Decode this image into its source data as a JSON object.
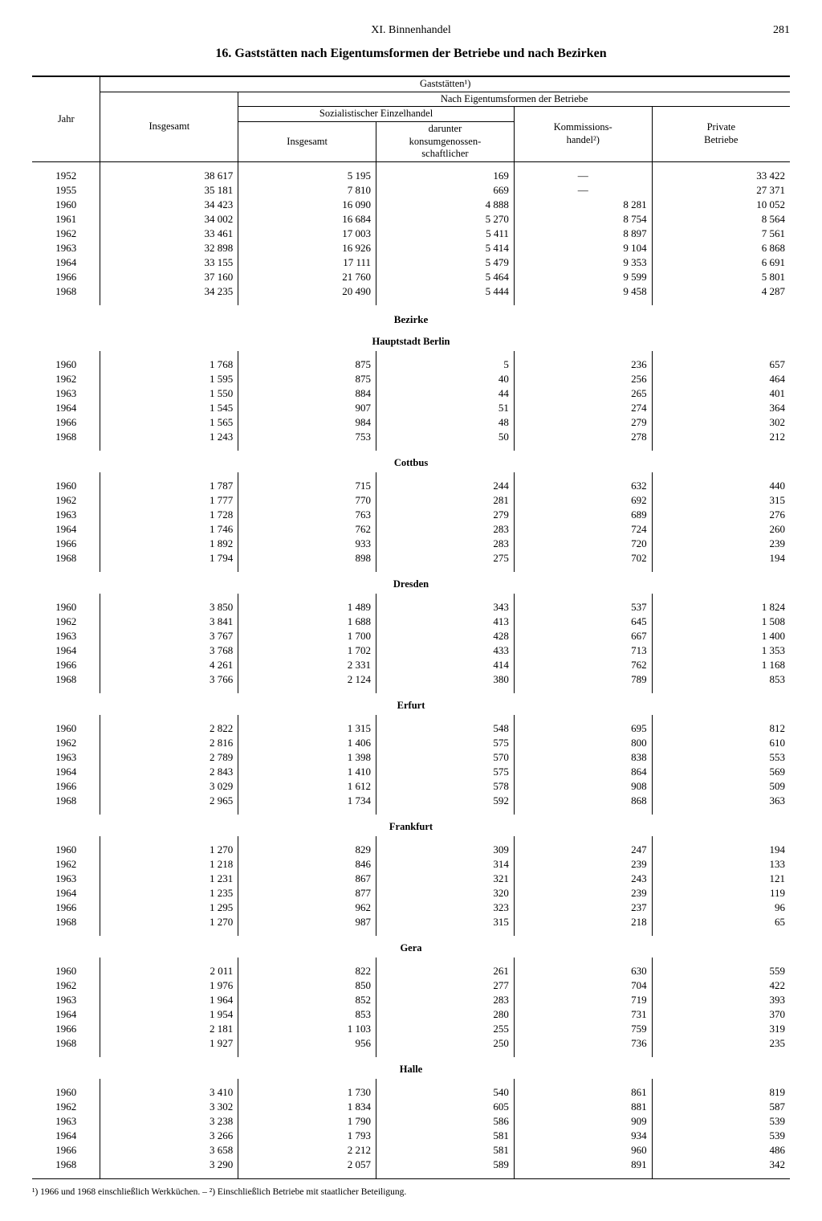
{
  "header": {
    "chapter": "XI. Binnenhandel",
    "page_number": "281"
  },
  "title": "16. Gaststätten nach Eigentumsformen der Betriebe und nach Bezirken",
  "columns": {
    "year": "Jahr",
    "top_group": "Gaststätten¹)",
    "ownership_group": "Nach Eigentumsformen der Betriebe",
    "total": "Insgesamt",
    "socialist_group": "Sozialistischer Einzelhandel",
    "socialist_total": "Insgesamt",
    "socialist_coop": "darunter\nkonsumgenossen-\nschaftlicher",
    "commission": "Kommissions-\nhandel²)",
    "private": "Private\nBetriebe"
  },
  "section_label": "Bezirke",
  "national": [
    {
      "y": "1952",
      "t": "38 617",
      "s": "5 195",
      "c": "169",
      "k": "—",
      "p": "33 422"
    },
    {
      "y": "1955",
      "t": "35 181",
      "s": "7 810",
      "c": "669",
      "k": "—",
      "p": "27 371"
    },
    {
      "y": "1960",
      "t": "34 423",
      "s": "16 090",
      "c": "4 888",
      "k": "8 281",
      "p": "10 052"
    },
    {
      "y": "1961",
      "t": "34 002",
      "s": "16 684",
      "c": "5 270",
      "k": "8 754",
      "p": "8 564"
    },
    {
      "y": "1962",
      "t": "33 461",
      "s": "17 003",
      "c": "5 411",
      "k": "8 897",
      "p": "7 561"
    },
    {
      "y": "1963",
      "t": "32 898",
      "s": "16 926",
      "c": "5 414",
      "k": "9 104",
      "p": "6 868"
    },
    {
      "y": "1964",
      "t": "33 155",
      "s": "17 111",
      "c": "5 479",
      "k": "9 353",
      "p": "6 691"
    },
    {
      "y": "1966",
      "t": "37 160",
      "s": "21 760",
      "c": "5 464",
      "k": "9 599",
      "p": "5 801"
    },
    {
      "y": "1968",
      "t": "34 235",
      "s": "20 490",
      "c": "5 444",
      "k": "9 458",
      "p": "4 287"
    }
  ],
  "districts": [
    {
      "name": "Hauptstadt Berlin",
      "rows": [
        {
          "y": "1960",
          "t": "1 768",
          "s": "875",
          "c": "5",
          "k": "236",
          "p": "657"
        },
        {
          "y": "1962",
          "t": "1 595",
          "s": "875",
          "c": "40",
          "k": "256",
          "p": "464"
        },
        {
          "y": "1963",
          "t": "1 550",
          "s": "884",
          "c": "44",
          "k": "265",
          "p": "401"
        },
        {
          "y": "1964",
          "t": "1 545",
          "s": "907",
          "c": "51",
          "k": "274",
          "p": "364"
        },
        {
          "y": "1966",
          "t": "1 565",
          "s": "984",
          "c": "48",
          "k": "279",
          "p": "302"
        },
        {
          "y": "1968",
          "t": "1 243",
          "s": "753",
          "c": "50",
          "k": "278",
          "p": "212"
        }
      ]
    },
    {
      "name": "Cottbus",
      "rows": [
        {
          "y": "1960",
          "t": "1 787",
          "s": "715",
          "c": "244",
          "k": "632",
          "p": "440"
        },
        {
          "y": "1962",
          "t": "1 777",
          "s": "770",
          "c": "281",
          "k": "692",
          "p": "315"
        },
        {
          "y": "1963",
          "t": "1 728",
          "s": "763",
          "c": "279",
          "k": "689",
          "p": "276"
        },
        {
          "y": "1964",
          "t": "1 746",
          "s": "762",
          "c": "283",
          "k": "724",
          "p": "260"
        },
        {
          "y": "1966",
          "t": "1 892",
          "s": "933",
          "c": "283",
          "k": "720",
          "p": "239"
        },
        {
          "y": "1968",
          "t": "1 794",
          "s": "898",
          "c": "275",
          "k": "702",
          "p": "194"
        }
      ]
    },
    {
      "name": "Dresden",
      "rows": [
        {
          "y": "1960",
          "t": "3 850",
          "s": "1 489",
          "c": "343",
          "k": "537",
          "p": "1 824"
        },
        {
          "y": "1962",
          "t": "3 841",
          "s": "1 688",
          "c": "413",
          "k": "645",
          "p": "1 508"
        },
        {
          "y": "1963",
          "t": "3 767",
          "s": "1 700",
          "c": "428",
          "k": "667",
          "p": "1 400"
        },
        {
          "y": "1964",
          "t": "3 768",
          "s": "1 702",
          "c": "433",
          "k": "713",
          "p": "1 353"
        },
        {
          "y": "1966",
          "t": "4 261",
          "s": "2 331",
          "c": "414",
          "k": "762",
          "p": "1 168"
        },
        {
          "y": "1968",
          "t": "3 766",
          "s": "2 124",
          "c": "380",
          "k": "789",
          "p": "853"
        }
      ]
    },
    {
      "name": "Erfurt",
      "rows": [
        {
          "y": "1960",
          "t": "2 822",
          "s": "1 315",
          "c": "548",
          "k": "695",
          "p": "812"
        },
        {
          "y": "1962",
          "t": "2 816",
          "s": "1 406",
          "c": "575",
          "k": "800",
          "p": "610"
        },
        {
          "y": "1963",
          "t": "2 789",
          "s": "1 398",
          "c": "570",
          "k": "838",
          "p": "553"
        },
        {
          "y": "1964",
          "t": "2 843",
          "s": "1 410",
          "c": "575",
          "k": "864",
          "p": "569"
        },
        {
          "y": "1966",
          "t": "3 029",
          "s": "1 612",
          "c": "578",
          "k": "908",
          "p": "509"
        },
        {
          "y": "1968",
          "t": "2 965",
          "s": "1 734",
          "c": "592",
          "k": "868",
          "p": "363"
        }
      ]
    },
    {
      "name": "Frankfurt",
      "rows": [
        {
          "y": "1960",
          "t": "1 270",
          "s": "829",
          "c": "309",
          "k": "247",
          "p": "194"
        },
        {
          "y": "1962",
          "t": "1 218",
          "s": "846",
          "c": "314",
          "k": "239",
          "p": "133"
        },
        {
          "y": "1963",
          "t": "1 231",
          "s": "867",
          "c": "321",
          "k": "243",
          "p": "121"
        },
        {
          "y": "1964",
          "t": "1 235",
          "s": "877",
          "c": "320",
          "k": "239",
          "p": "119"
        },
        {
          "y": "1966",
          "t": "1 295",
          "s": "962",
          "c": "323",
          "k": "237",
          "p": "96"
        },
        {
          "y": "1968",
          "t": "1 270",
          "s": "987",
          "c": "315",
          "k": "218",
          "p": "65"
        }
      ]
    },
    {
      "name": "Gera",
      "rows": [
        {
          "y": "1960",
          "t": "2 011",
          "s": "822",
          "c": "261",
          "k": "630",
          "p": "559"
        },
        {
          "y": "1962",
          "t": "1 976",
          "s": "850",
          "c": "277",
          "k": "704",
          "p": "422"
        },
        {
          "y": "1963",
          "t": "1 964",
          "s": "852",
          "c": "283",
          "k": "719",
          "p": "393"
        },
        {
          "y": "1964",
          "t": "1 954",
          "s": "853",
          "c": "280",
          "k": "731",
          "p": "370"
        },
        {
          "y": "1966",
          "t": "2 181",
          "s": "1 103",
          "c": "255",
          "k": "759",
          "p": "319"
        },
        {
          "y": "1968",
          "t": "1 927",
          "s": "956",
          "c": "250",
          "k": "736",
          "p": "235"
        }
      ]
    },
    {
      "name": "Halle",
      "rows": [
        {
          "y": "1960",
          "t": "3 410",
          "s": "1 730",
          "c": "540",
          "k": "861",
          "p": "819"
        },
        {
          "y": "1962",
          "t": "3 302",
          "s": "1 834",
          "c": "605",
          "k": "881",
          "p": "587"
        },
        {
          "y": "1963",
          "t": "3 238",
          "s": "1 790",
          "c": "586",
          "k": "909",
          "p": "539"
        },
        {
          "y": "1964",
          "t": "3 266",
          "s": "1 793",
          "c": "581",
          "k": "934",
          "p": "539"
        },
        {
          "y": "1966",
          "t": "3 658",
          "s": "2 212",
          "c": "581",
          "k": "960",
          "p": "486"
        },
        {
          "y": "1968",
          "t": "3 290",
          "s": "2 057",
          "c": "589",
          "k": "891",
          "p": "342"
        }
      ]
    }
  ],
  "footnotes": "¹) 1966 und 1968 einschließlich Werkküchen. – ²) Einschließlich Betriebe mit staatlicher Beteiligung."
}
